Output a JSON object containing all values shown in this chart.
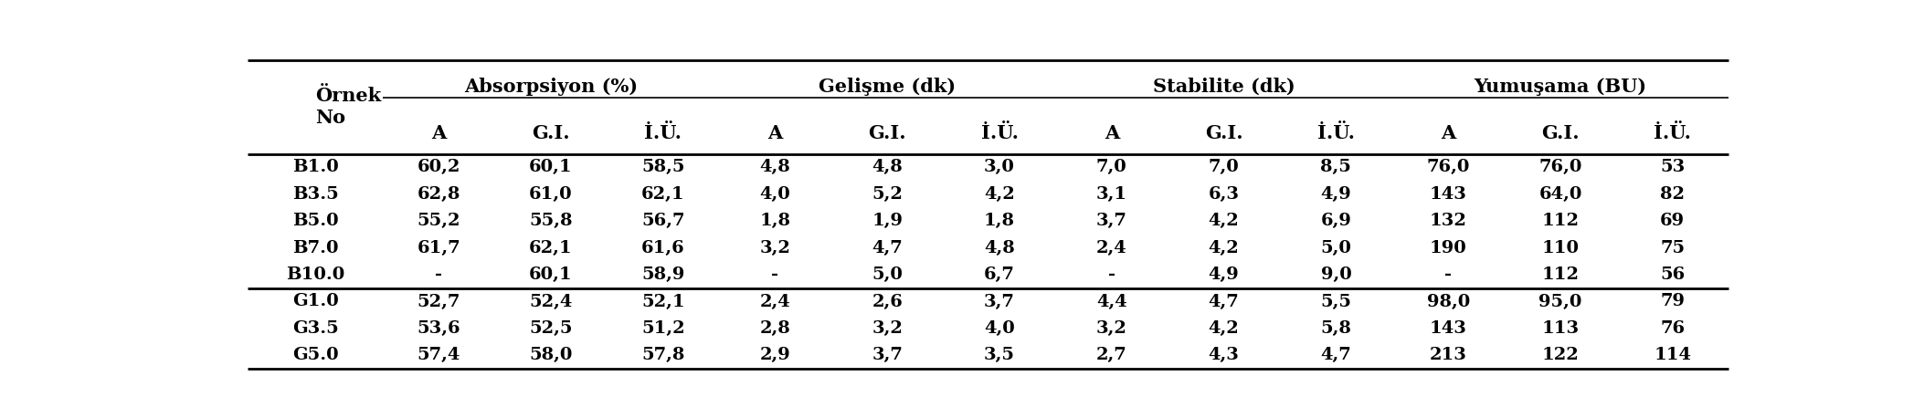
{
  "col_groups": [
    {
      "label": "Absorpsiyon (%)",
      "cols": [
        1,
        2,
        3
      ]
    },
    {
      "label": "Gelişme (dk)",
      "cols": [
        4,
        5,
        6
      ]
    },
    {
      "label": "Stabilite (dk)",
      "cols": [
        7,
        8,
        9
      ]
    },
    {
      "label": "Yumuşama (BU)",
      "cols": [
        10,
        11,
        12
      ]
    }
  ],
  "sub_headers": [
    "A",
    "G.I.",
    "İ.Ü."
  ],
  "rows": [
    [
      "B1.0",
      "60,2",
      "60,1",
      "58,5",
      "4,8",
      "4,8",
      "3,0",
      "7,0",
      "7,0",
      "8,5",
      "76,0",
      "76,0",
      "53"
    ],
    [
      "B3.5",
      "62,8",
      "61,0",
      "62,1",
      "4,0",
      "5,2",
      "4,2",
      "3,1",
      "6,3",
      "4,9",
      "143",
      "64,0",
      "82"
    ],
    [
      "B5.0",
      "55,2",
      "55,8",
      "56,7",
      "1,8",
      "1,9",
      "1,8",
      "3,7",
      "4,2",
      "6,9",
      "132",
      "112",
      "69"
    ],
    [
      "B7.0",
      "61,7",
      "62,1",
      "61,6",
      "3,2",
      "4,7",
      "4,8",
      "2,4",
      "4,2",
      "5,0",
      "190",
      "110",
      "75"
    ],
    [
      "B10.0",
      "-",
      "60,1",
      "58,9",
      "-",
      "5,0",
      "6,7",
      "-",
      "4,9",
      "9,0",
      "-",
      "112",
      "56"
    ],
    [
      "G1.0",
      "52,7",
      "52,4",
      "52,1",
      "2,4",
      "2,6",
      "3,7",
      "4,4",
      "4,7",
      "5,5",
      "98,0",
      "95,0",
      "79"
    ],
    [
      "G3.5",
      "53,6",
      "52,5",
      "51,2",
      "2,8",
      "3,2",
      "4,0",
      "3,2",
      "4,2",
      "5,8",
      "143",
      "113",
      "76"
    ],
    [
      "G5.0",
      "57,4",
      "58,0",
      "57,8",
      "2,9",
      "3,7",
      "3,5",
      "2,7",
      "4,3",
      "4,7",
      "213",
      "122",
      "114"
    ]
  ],
  "bg_color": "#ffffff",
  "text_color": "#000000",
  "ornek_no_label": "Örnek\nNo",
  "col_widths": [
    1.2,
    1.0,
    1.0,
    1.0,
    1.0,
    1.0,
    1.0,
    1.0,
    1.0,
    1.0,
    1.0,
    1.0,
    1.0
  ],
  "font_size": 14,
  "header_font_size": 15,
  "line_lw_thick": 2.0,
  "line_lw_thin": 1.2
}
